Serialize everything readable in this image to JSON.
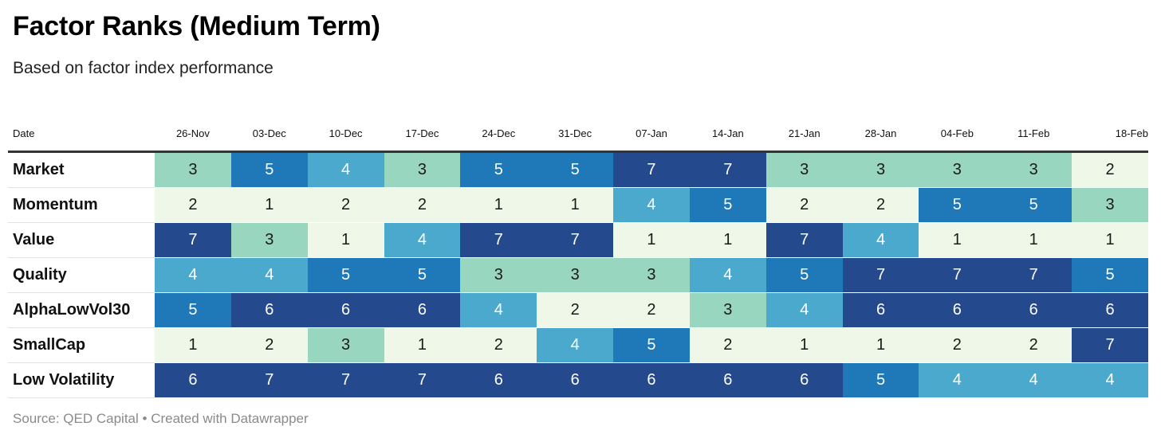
{
  "header": {
    "title": "Factor Ranks (Medium Term)",
    "subtitle": "Based on factor index performance"
  },
  "table": {
    "row_header": "Date"
  },
  "footer": {
    "source": "Source: QED Capital • Created with Datawrapper"
  },
  "palette": {
    "1": "#eef7e8",
    "2": "#eef7e8",
    "3": "#99d6c0",
    "4": "#4ba9ce",
    "5": "#1f78b8",
    "6": "#244a8d",
    "7": "#244a8d",
    "dark_text": "#1a1a1a",
    "light_text": "#ffffff"
  },
  "chart_data": {
    "type": "heatmap",
    "title": "Factor Ranks (Medium Term)",
    "subtitle": "Based on factor index performance",
    "columns": [
      "26-Nov",
      "03-Dec",
      "10-Dec",
      "17-Dec",
      "24-Dec",
      "31-Dec",
      "07-Jan",
      "14-Jan",
      "21-Jan",
      "28-Jan",
      "04-Feb",
      "11-Feb",
      "18-Feb"
    ],
    "rows": [
      {
        "name": "Market",
        "values": [
          3,
          5,
          4,
          3,
          5,
          5,
          7,
          7,
          3,
          3,
          3,
          3,
          2
        ]
      },
      {
        "name": "Momentum",
        "values": [
          2,
          1,
          2,
          2,
          1,
          1,
          4,
          5,
          2,
          2,
          5,
          5,
          3
        ]
      },
      {
        "name": "Value",
        "values": [
          7,
          3,
          1,
          4,
          7,
          7,
          1,
          1,
          7,
          4,
          1,
          1,
          1
        ]
      },
      {
        "name": "Quality",
        "values": [
          4,
          4,
          5,
          5,
          3,
          3,
          3,
          4,
          5,
          7,
          7,
          7,
          5
        ]
      },
      {
        "name": "AlphaLowVol30",
        "values": [
          5,
          6,
          6,
          6,
          4,
          2,
          2,
          3,
          4,
          6,
          6,
          6,
          6
        ]
      },
      {
        "name": "SmallCap",
        "values": [
          1,
          2,
          3,
          1,
          2,
          4,
          5,
          2,
          1,
          1,
          2,
          2,
          7
        ]
      },
      {
        "name": "Low Volatility",
        "values": [
          6,
          7,
          7,
          7,
          6,
          6,
          6,
          6,
          6,
          5,
          4,
          4,
          4
        ]
      }
    ]
  }
}
